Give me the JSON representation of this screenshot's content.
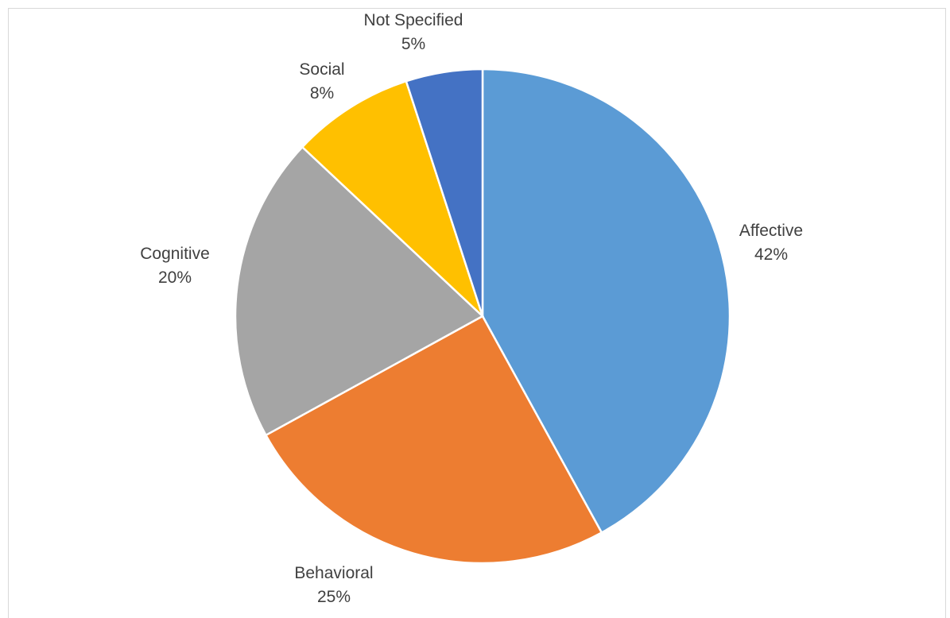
{
  "chart_data": {
    "type": "pie",
    "title": "",
    "slices": [
      {
        "label": "Affective",
        "value": 42,
        "display": "42%",
        "color": "#5B9BD5"
      },
      {
        "label": "Behavioral",
        "value": 25,
        "display": "25%",
        "color": "#ED7D31"
      },
      {
        "label": "Cognitive",
        "value": 20,
        "display": "20%",
        "color": "#A5A5A5"
      },
      {
        "label": "Social",
        "value": 8,
        "display": "8%",
        "color": "#FFC000"
      },
      {
        "label": "Not Specified",
        "value": 5,
        "display": "5%",
        "color": "#4472C4"
      }
    ],
    "start_angle": "12 o'clock",
    "direction": "clockwise",
    "legend": "none",
    "data_labels": "outside"
  }
}
